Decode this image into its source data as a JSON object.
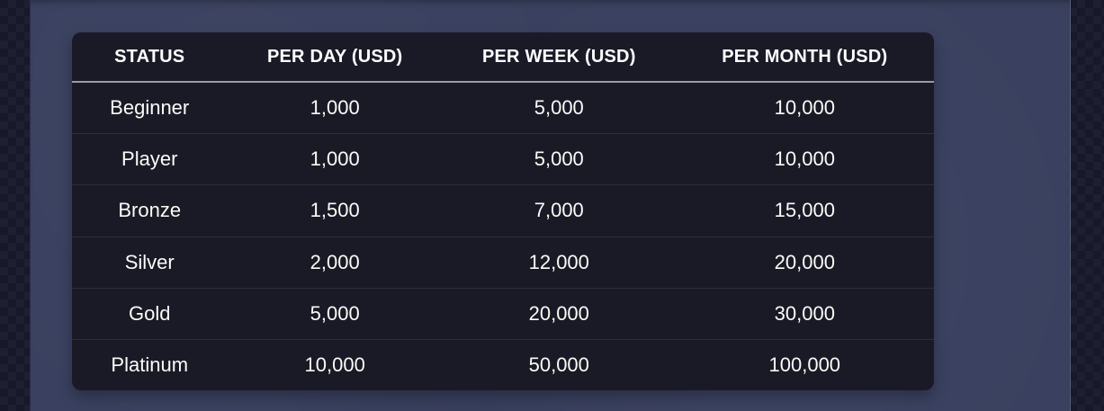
{
  "table": {
    "columns": [
      {
        "key": "status",
        "label": "STATUS"
      },
      {
        "key": "per_day",
        "label": "PER DAY (USD)"
      },
      {
        "key": "per_week",
        "label": "PER WEEK (USD)"
      },
      {
        "key": "per_month",
        "label": "PER MONTH (USD)"
      }
    ],
    "rows": [
      {
        "status": "Beginner",
        "per_day": "1,000",
        "per_week": "5,000",
        "per_month": "10,000"
      },
      {
        "status": "Player",
        "per_day": "1,000",
        "per_week": "5,000",
        "per_month": "10,000"
      },
      {
        "status": "Bronze",
        "per_day": "1,500",
        "per_week": "7,000",
        "per_month": "15,000"
      },
      {
        "status": "Silver",
        "per_day": "2,000",
        "per_week": "12,000",
        "per_month": "20,000"
      },
      {
        "status": "Gold",
        "per_day": "5,000",
        "per_week": "20,000",
        "per_month": "30,000"
      },
      {
        "status": "Platinum",
        "per_day": "10,000",
        "per_week": "50,000",
        "per_month": "100,000"
      }
    ]
  },
  "colors": {
    "outer_bg": "#18182b",
    "panel_bg": "#3a4160",
    "table_bg": "#1a1a27",
    "header_separator": "#9b9ba8",
    "text": "#fbfbf7"
  }
}
